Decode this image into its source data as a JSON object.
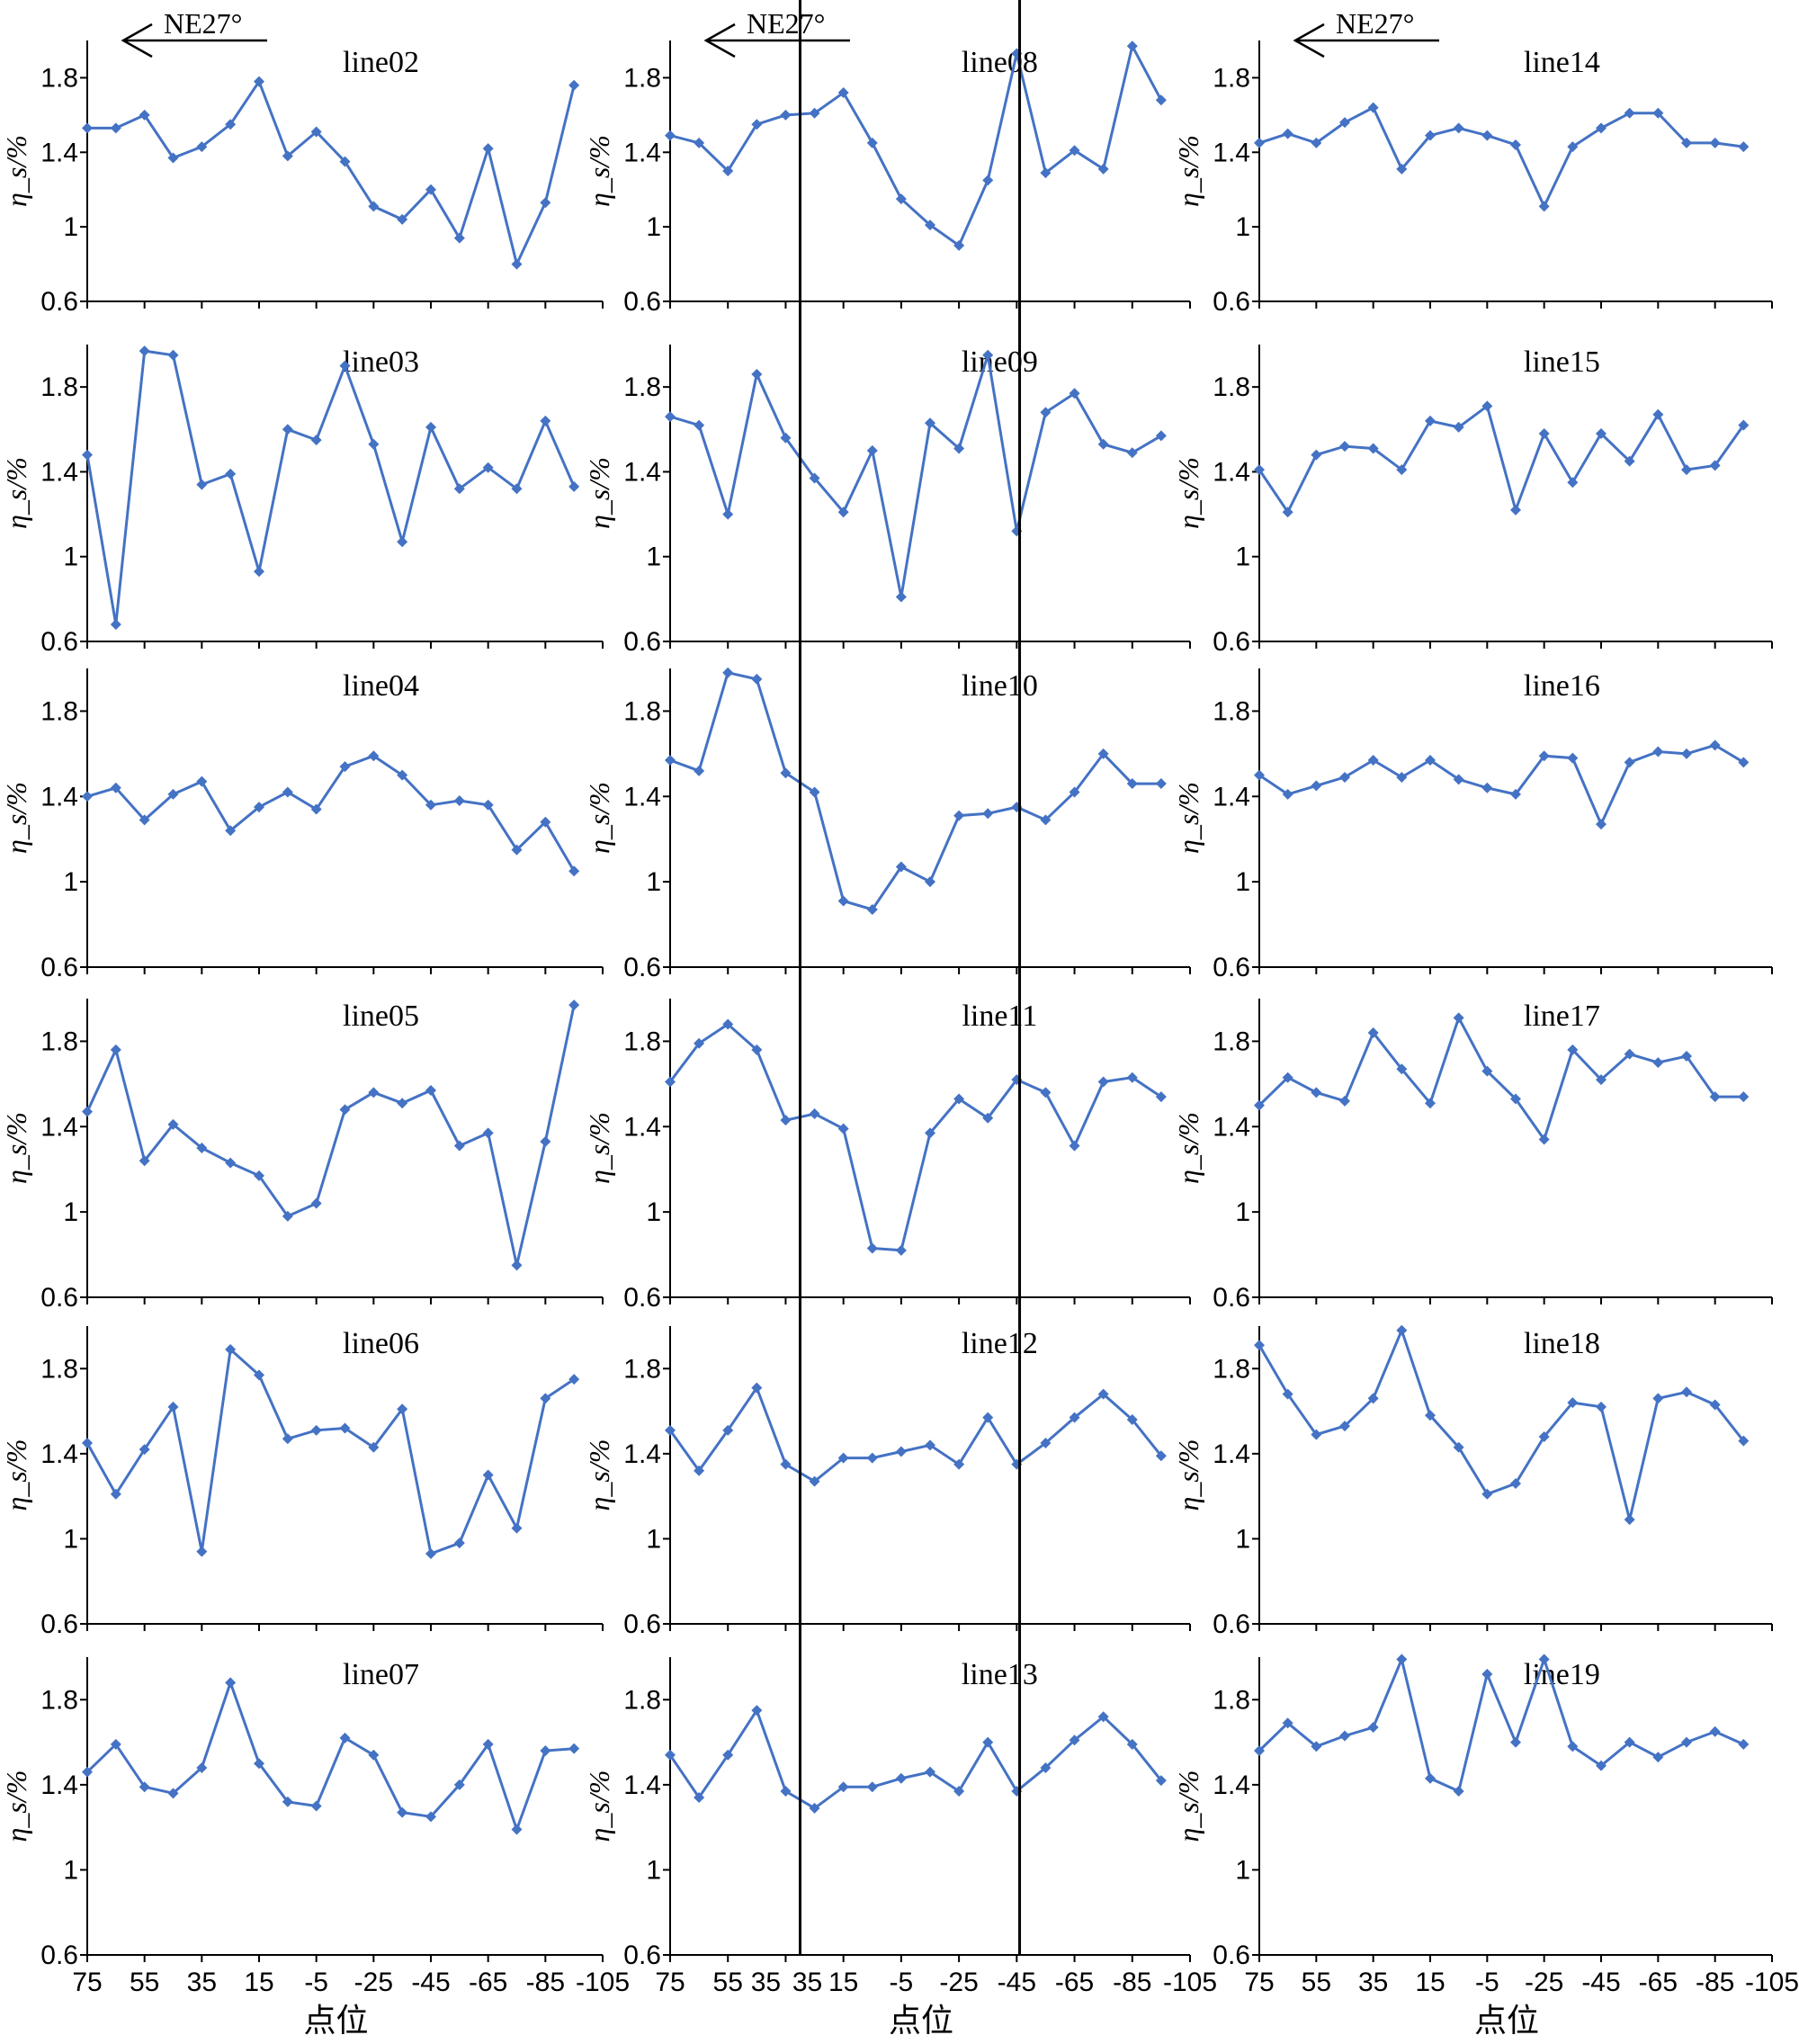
{
  "figure": {
    "y_axis_label": "η_s/%",
    "x_axis_label": "点位",
    "direction_label": "NE27°",
    "y_ticks": [
      "0.6",
      "1",
      "1.4",
      "1.8"
    ],
    "x_ticks": [
      "75",
      "55",
      "35",
      "15",
      "-5",
      "-25",
      "-45",
      "-65",
      "-85",
      "-105"
    ],
    "column2_x_ticks": [
      "75",
      "55",
      "35",
      "35",
      "15",
      "-5",
      "-25",
      "-45",
      "-65",
      "-85",
      "-105"
    ],
    "series_color": "#4472C4",
    "marker": "diamond"
  },
  "chart_data": [
    {
      "type": "line",
      "title": "line02",
      "ylim": [
        0.6,
        2.0
      ],
      "x": [
        75,
        65,
        55,
        45,
        35,
        25,
        15,
        5,
        -5,
        -15,
        -25,
        -35,
        -45,
        -55,
        -65,
        -75,
        -85,
        -95
      ],
      "values": [
        1.53,
        1.53,
        1.6,
        1.37,
        1.43,
        1.55,
        1.78,
        1.38,
        1.51,
        1.35,
        1.11,
        1.04,
        1.2,
        0.94,
        1.42,
        0.8,
        1.13,
        1.76
      ]
    },
    {
      "type": "line",
      "title": "line03",
      "ylim": [
        0.6,
        2.0
      ],
      "x": [
        75,
        65,
        55,
        45,
        35,
        25,
        15,
        5,
        -5,
        -15,
        -25,
        -35,
        -45,
        -55,
        -65,
        -75,
        -85,
        -95
      ],
      "values": [
        1.48,
        0.68,
        1.97,
        1.95,
        1.34,
        1.39,
        0.93,
        1.6,
        1.55,
        1.9,
        1.53,
        1.07,
        1.61,
        1.32,
        1.42,
        1.32,
        1.64,
        1.33
      ]
    },
    {
      "type": "line",
      "title": "line04",
      "ylim": [
        0.6,
        2.0
      ],
      "x": [
        75,
        65,
        55,
        45,
        35,
        25,
        15,
        5,
        -5,
        -15,
        -25,
        -35,
        -45,
        -55,
        -65,
        -75,
        -85,
        -95
      ],
      "values": [
        1.4,
        1.44,
        1.29,
        1.41,
        1.47,
        1.24,
        1.35,
        1.42,
        1.34,
        1.54,
        1.59,
        1.5,
        1.36,
        1.38,
        1.36,
        1.15,
        1.28,
        1.05
      ]
    },
    {
      "type": "line",
      "title": "line05",
      "ylim": [
        0.6,
        2.0
      ],
      "x": [
        75,
        65,
        55,
        45,
        35,
        25,
        15,
        5,
        -5,
        -15,
        -25,
        -35,
        -45,
        -55,
        -65,
        -75,
        -85,
        -95
      ],
      "values": [
        1.47,
        1.76,
        1.24,
        1.41,
        1.3,
        1.23,
        1.17,
        0.98,
        1.04,
        1.48,
        1.56,
        1.51,
        1.57,
        1.31,
        1.37,
        0.75,
        1.33,
        1.97
      ]
    },
    {
      "type": "line",
      "title": "line06",
      "ylim": [
        0.6,
        2.0
      ],
      "x": [
        75,
        65,
        55,
        45,
        35,
        25,
        15,
        5,
        -5,
        -15,
        -25,
        -35,
        -45,
        -55,
        -65,
        -75,
        -85,
        -95
      ],
      "values": [
        1.45,
        1.21,
        1.42,
        1.62,
        0.94,
        1.89,
        1.77,
        1.47,
        1.51,
        1.52,
        1.43,
        1.61,
        0.93,
        0.98,
        1.3,
        1.05,
        1.66,
        1.75
      ]
    },
    {
      "type": "line",
      "title": "line07",
      "ylim": [
        0.6,
        2.0
      ],
      "x": [
        75,
        65,
        55,
        45,
        35,
        25,
        15,
        5,
        -5,
        -15,
        -25,
        -35,
        -45,
        -55,
        -65,
        -75,
        -85,
        -95
      ],
      "values": [
        1.46,
        1.59,
        1.39,
        1.36,
        1.48,
        1.88,
        1.5,
        1.32,
        1.3,
        1.62,
        1.54,
        1.27,
        1.25,
        1.4,
        1.59,
        1.19,
        1.56,
        1.57
      ]
    },
    {
      "type": "line",
      "title": "line08",
      "ylim": [
        0.6,
        2.0
      ],
      "x": [
        75,
        65,
        55,
        45,
        35,
        25,
        15,
        5,
        -5,
        -15,
        -25,
        -35,
        -45,
        -55,
        -65,
        -75,
        -85,
        -95
      ],
      "values": [
        1.49,
        1.45,
        1.3,
        1.55,
        1.6,
        1.61,
        1.72,
        1.45,
        1.15,
        1.01,
        0.9,
        1.25,
        1.93,
        1.29,
        1.41,
        1.31,
        1.97,
        1.68
      ]
    },
    {
      "type": "line",
      "title": "line09",
      "ylim": [
        0.6,
        2.0
      ],
      "x": [
        75,
        65,
        55,
        45,
        35,
        25,
        15,
        5,
        -5,
        -15,
        -25,
        -35,
        -45,
        -55,
        -65,
        -75,
        -85,
        -95
      ],
      "values": [
        1.66,
        1.62,
        1.2,
        1.86,
        1.56,
        1.37,
        1.21,
        1.5,
        0.81,
        1.63,
        1.51,
        1.95,
        1.12,
        1.68,
        1.77,
        1.53,
        1.49,
        1.57
      ]
    },
    {
      "type": "line",
      "title": "line10",
      "ylim": [
        0.6,
        2.0
      ],
      "x": [
        75,
        65,
        55,
        45,
        35,
        25,
        15,
        5,
        -5,
        -15,
        -25,
        -35,
        -45,
        -55,
        -65,
        -75,
        -85,
        -95
      ],
      "values": [
        1.57,
        1.52,
        1.98,
        1.95,
        1.51,
        1.42,
        0.91,
        0.87,
        1.07,
        1.0,
        1.31,
        1.32,
        1.35,
        1.29,
        1.42,
        1.6,
        1.46,
        1.46
      ]
    },
    {
      "type": "line",
      "title": "line11",
      "ylim": [
        0.6,
        2.0
      ],
      "x": [
        75,
        65,
        55,
        45,
        35,
        25,
        15,
        5,
        -5,
        -15,
        -25,
        -35,
        -45,
        -55,
        -65,
        -75,
        -85,
        -95
      ],
      "values": [
        1.61,
        1.79,
        1.88,
        1.76,
        1.43,
        1.46,
        1.39,
        0.83,
        0.82,
        1.37,
        1.53,
        1.44,
        1.62,
        1.56,
        1.31,
        1.61,
        1.63,
        1.54
      ]
    },
    {
      "type": "line",
      "title": "line12",
      "ylim": [
        0.6,
        2.0
      ],
      "x": [
        75,
        65,
        55,
        45,
        35,
        25,
        15,
        5,
        -5,
        -15,
        -25,
        -35,
        -45,
        -55,
        -65,
        -75,
        -85,
        -95
      ],
      "values": [
        1.51,
        1.32,
        1.51,
        1.71,
        1.35,
        1.27,
        1.38,
        1.38,
        1.41,
        1.44,
        1.35,
        1.57,
        1.35,
        1.45,
        1.57,
        1.68,
        1.56,
        1.39
      ]
    },
    {
      "type": "line",
      "title": "line13",
      "ylim": [
        0.6,
        2.0
      ],
      "x": [
        75,
        65,
        55,
        45,
        35,
        25,
        15,
        5,
        -5,
        -15,
        -25,
        -35,
        -45,
        -55,
        -65,
        -75,
        -85,
        -95
      ],
      "values": [
        1.54,
        1.34,
        1.54,
        1.75,
        1.37,
        1.29,
        1.39,
        1.39,
        1.43,
        1.46,
        1.37,
        1.6,
        1.37,
        1.48,
        1.61,
        1.72,
        1.59,
        1.42
      ]
    },
    {
      "type": "line",
      "title": "line14",
      "ylim": [
        0.6,
        2.0
      ],
      "x": [
        75,
        65,
        55,
        45,
        35,
        25,
        15,
        5,
        -5,
        -15,
        -25,
        -35,
        -45,
        -55,
        -65,
        -75,
        -85,
        -95
      ],
      "values": [
        1.45,
        1.5,
        1.45,
        1.56,
        1.64,
        1.31,
        1.49,
        1.53,
        1.49,
        1.44,
        1.11,
        1.43,
        1.53,
        1.61,
        1.61,
        1.45,
        1.45,
        1.43
      ]
    },
    {
      "type": "line",
      "title": "line15",
      "ylim": [
        0.6,
        2.0
      ],
      "x": [
        75,
        65,
        55,
        45,
        35,
        25,
        15,
        5,
        -5,
        -15,
        -25,
        -35,
        -45,
        -55,
        -65,
        -75,
        -85,
        -95
      ],
      "values": [
        1.41,
        1.21,
        1.48,
        1.52,
        1.51,
        1.41,
        1.64,
        1.61,
        1.71,
        1.22,
        1.58,
        1.35,
        1.58,
        1.45,
        1.67,
        1.41,
        1.43,
        1.62
      ]
    },
    {
      "type": "line",
      "title": "line16",
      "ylim": [
        0.6,
        2.0
      ],
      "x": [
        75,
        65,
        55,
        45,
        35,
        25,
        15,
        5,
        -5,
        -15,
        -25,
        -35,
        -45,
        -55,
        -65,
        -75,
        -85,
        -95
      ],
      "values": [
        1.5,
        1.41,
        1.45,
        1.49,
        1.57,
        1.49,
        1.57,
        1.48,
        1.44,
        1.41,
        1.59,
        1.58,
        1.27,
        1.56,
        1.61,
        1.6,
        1.64,
        1.56
      ]
    },
    {
      "type": "line",
      "title": "line17",
      "ylim": [
        0.6,
        2.0
      ],
      "x": [
        75,
        65,
        55,
        45,
        35,
        25,
        15,
        5,
        -5,
        -15,
        -25,
        -35,
        -45,
        -55,
        -65,
        -75,
        -85,
        -95
      ],
      "values": [
        1.5,
        1.63,
        1.56,
        1.52,
        1.84,
        1.67,
        1.51,
        1.91,
        1.66,
        1.53,
        1.34,
        1.76,
        1.62,
        1.74,
        1.7,
        1.73,
        1.54,
        1.54
      ]
    },
    {
      "type": "line",
      "title": "line18",
      "ylim": [
        0.6,
        2.0
      ],
      "x": [
        75,
        65,
        55,
        45,
        35,
        25,
        15,
        5,
        -5,
        -15,
        -25,
        -35,
        -45,
        -55,
        -65,
        -75,
        -85,
        -95
      ],
      "values": [
        1.91,
        1.68,
        1.49,
        1.53,
        1.66,
        1.98,
        1.58,
        1.43,
        1.21,
        1.26,
        1.48,
        1.64,
        1.62,
        1.09,
        1.66,
        1.69,
        1.63,
        1.46
      ]
    },
    {
      "type": "line",
      "title": "line19",
      "ylim": [
        0.6,
        2.0
      ],
      "x": [
        75,
        65,
        55,
        45,
        35,
        25,
        15,
        5,
        -5,
        -15,
        -25,
        -35,
        -45,
        -55,
        -65,
        -75,
        -85,
        -95
      ],
      "values": [
        1.56,
        1.69,
        1.58,
        1.63,
        1.67,
        1.99,
        1.43,
        1.37,
        1.92,
        1.6,
        1.99,
        1.58,
        1.49,
        1.6,
        1.53,
        1.6,
        1.65,
        1.59
      ]
    }
  ]
}
